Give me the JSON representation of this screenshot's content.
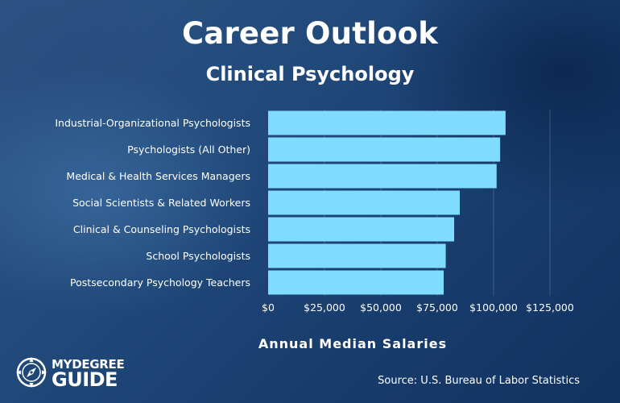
{
  "header": {
    "title": "Career Outlook",
    "subtitle": "Clinical Psychology"
  },
  "chart_data": {
    "type": "bar",
    "orientation": "horizontal",
    "categories": [
      "Industrial-Organizational Psychologists",
      "Psychologists (All Other)",
      "Medical & Health Services Managers",
      "Social Scientists & Related Workers",
      "Clinical & Counseling Psychologists",
      "School Psychologists",
      "Postsecondary Psychology Teachers"
    ],
    "values": [
      105310,
      102900,
      101340,
      85000,
      82510,
      78780,
      77860
    ],
    "xlim": [
      0,
      125000
    ],
    "xticks": [
      0,
      25000,
      50000,
      75000,
      100000,
      125000
    ],
    "xtick_labels": [
      "$0",
      "$25,000",
      "$50,000",
      "$75,000",
      "$100,000",
      "$125,000"
    ],
    "xlabel": "Annual Median Salaries",
    "ylabel": "",
    "grid": true,
    "bar_color": "#7fdcff"
  },
  "logo": {
    "top_text": "MYDEGREE",
    "bottom_text": "GUIDE",
    "icon": "compass-icon"
  },
  "footer": {
    "source": "Source: U.S. Bureau of Labor Statistics"
  }
}
